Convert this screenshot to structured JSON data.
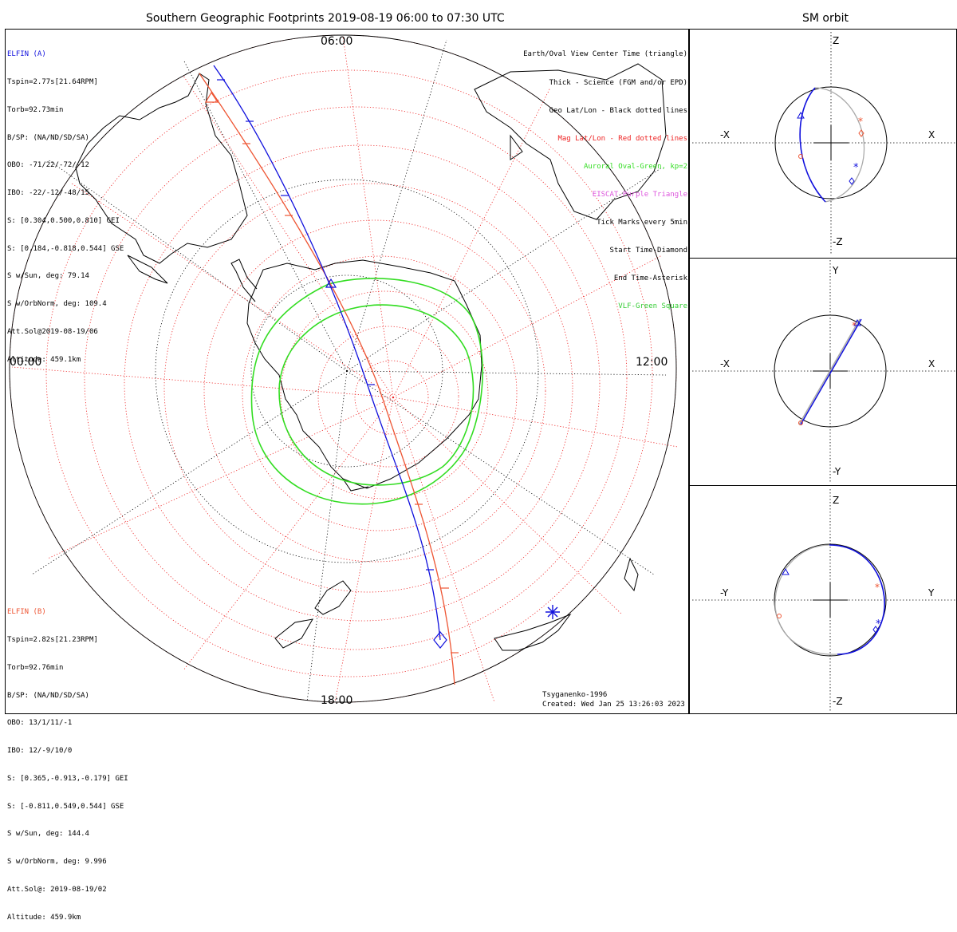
{
  "main_title": "Southern Geographic Footprints 2019-08-19 06:00 to 07:30 UTC",
  "orbit_title": "SM orbit",
  "time_labels": {
    "top": "06:00",
    "left": "00:00",
    "right": "12:00",
    "bottom": "18:00"
  },
  "colors": {
    "elfin_a": "#1010dd",
    "elfin_b": "#ee5533",
    "auroral": "#33dd22",
    "mag_grid": "#ee2222",
    "eiscat": "#dd55dd",
    "vlf": "#33cc33",
    "gray_orbit": "#aaaaaa"
  },
  "elfin_a": {
    "name": "ELFIN (A)",
    "lines": [
      "Tspin=2.77s[21.64RPM]",
      "Torb=92.73min",
      "B/SP: (NA/ND/SD/SA)",
      "OBO: -71/22/-72/-12",
      "IBO: -22/-12/-48/15",
      "S: [0.304,0.500,0.810] GEI",
      "S: [0.184,-0.818,0.544] GSE",
      "S w/Sun, deg: 79.14",
      "S w/OrbNorm, deg: 109.4",
      "Att.Sol@2019-08-19/06",
      "Altitude: 459.1km"
    ]
  },
  "elfin_b": {
    "name": "ELFIN (B)",
    "lines": [
      "Tspin=2.82s[21.23RPM]",
      "Torb=92.76min",
      "B/SP: (NA/ND/SD/SA)",
      "OBO: 13/1/11/-1",
      "IBO: 12/-9/10/0",
      "S: [0.365,-0.913,-0.179] GEI",
      "S: [-0.811,0.549,0.544] GSE",
      "S w/Sun, deg: 144.4",
      "S w/OrbNorm, deg: 9.996",
      "Att.Sol@: 2019-08-19/02",
      "Altitude: 459.9km"
    ]
  },
  "legend": [
    {
      "text": "Earth/Oval View Center Time (triangle)",
      "color": "#000000"
    },
    {
      "text": "Thick - Science (FGM and/or EPD)",
      "color": "#000000"
    },
    {
      "text": "Geo Lat/Lon - Black dotted lines",
      "color": "#000000"
    },
    {
      "text": "Mag Lat/Lon - Red dotted lines",
      "color": "#ee2222"
    },
    {
      "text": "Auroral Oval-Green, kp=2",
      "color": "#33dd22"
    },
    {
      "text": "EISCAT-Purple Triangle",
      "color": "#dd55dd"
    },
    {
      "text": "Tick Marks every 5min",
      "color": "#000000"
    },
    {
      "text": "Start Time-Diamond",
      "color": "#000000"
    },
    {
      "text": "End Time-Asterisk",
      "color": "#000000"
    },
    {
      "text": "VLF-Green Square",
      "color": "#33cc33"
    }
  ],
  "credit": {
    "line1": "Tsyganenko-1996",
    "line2": "Created: Wed Jan 25 13:26:03 2023"
  },
  "panels": [
    {
      "top": "Z",
      "bottom": "-Z",
      "left": "-X",
      "right": "X"
    },
    {
      "top": "Y",
      "bottom": "-Y",
      "left": "-X",
      "right": "X"
    },
    {
      "top": "Z",
      "bottom": "-Z",
      "left": "-Y",
      "right": "Y"
    }
  ]
}
